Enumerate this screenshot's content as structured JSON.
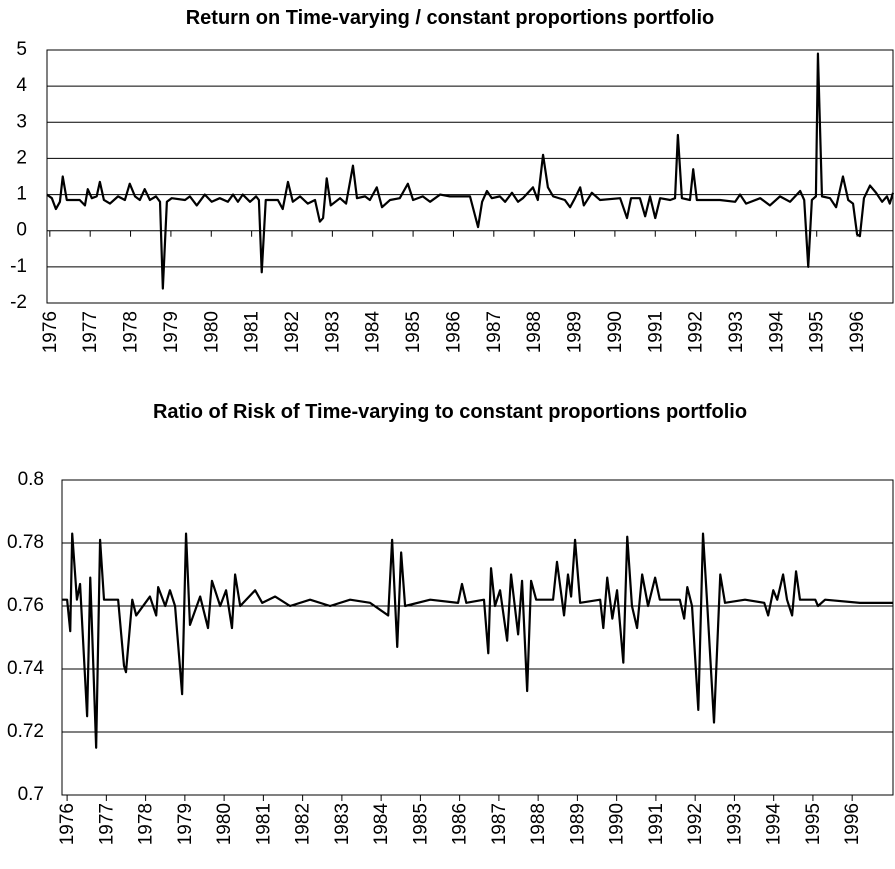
{
  "chart_data": [
    {
      "type": "line",
      "title": "Return on Time-varying / constant proportions portfolio",
      "x": [
        1975.93,
        1976.05,
        1976.15,
        1976.25,
        1976.32,
        1976.42,
        1976.74,
        1976.87,
        1976.94,
        1977.04,
        1977.16,
        1977.24,
        1977.34,
        1977.49,
        1977.69,
        1977.86,
        1977.98,
        1978.11,
        1978.23,
        1978.35,
        1978.48,
        1978.63,
        1978.73,
        1978.8,
        1978.9,
        1979.02,
        1979.35,
        1979.47,
        1979.64,
        1979.84,
        1980.01,
        1980.21,
        1980.41,
        1980.54,
        1980.66,
        1980.78,
        1980.96,
        1981.11,
        1981.18,
        1981.25,
        1981.35,
        1981.65,
        1981.77,
        1981.9,
        1982.02,
        1982.2,
        1982.39,
        1982.57,
        1982.69,
        1982.77,
        1982.86,
        1982.96,
        1983.19,
        1983.34,
        1983.51,
        1983.61,
        1983.81,
        1983.93,
        1984.1,
        1984.23,
        1984.43,
        1984.67,
        1984.87,
        1985.0,
        1985.24,
        1985.42,
        1985.67,
        1985.91,
        1986.41,
        1986.61,
        1986.71,
        1986.83,
        1986.95,
        1987.15,
        1987.28,
        1987.45,
        1987.6,
        1987.72,
        1987.97,
        1988.09,
        1988.22,
        1988.34,
        1988.47,
        1988.76,
        1988.89,
        1989.01,
        1989.14,
        1989.23,
        1989.43,
        1989.63,
        1990.13,
        1990.3,
        1990.4,
        1990.62,
        1990.75,
        1990.87,
        1991.0,
        1991.12,
        1991.37,
        1991.49,
        1991.56,
        1991.66,
        1991.86,
        1991.94,
        1992.03,
        1992.6,
        1992.98,
        1993.1,
        1993.25,
        1993.6,
        1993.84,
        1994.09,
        1994.34,
        1994.59,
        1994.69,
        1994.79,
        1994.88,
        1994.98,
        1995.03,
        1995.13,
        1995.33,
        1995.48,
        1995.65,
        1995.78,
        1995.9,
        1996.0,
        1996.07,
        1996.17,
        1996.32,
        1996.47,
        1996.62,
        1996.74,
        1996.81,
        1996.89
      ],
      "series": [
        {
          "color": "#000000",
          "values": [
            1.0,
            0.9,
            0.6,
            0.8,
            1.5,
            0.85,
            0.85,
            0.7,
            1.15,
            0.9,
            0.95,
            1.35,
            0.85,
            0.75,
            0.95,
            0.85,
            1.3,
            0.95,
            0.85,
            1.15,
            0.85,
            0.95,
            0.8,
            -1.6,
            0.8,
            0.9,
            0.85,
            0.95,
            0.7,
            1.0,
            0.8,
            0.9,
            0.8,
            1.0,
            0.8,
            1.0,
            0.8,
            0.95,
            0.85,
            -1.15,
            0.85,
            0.85,
            0.6,
            1.35,
            0.8,
            0.95,
            0.75,
            0.85,
            0.25,
            0.35,
            1.45,
            0.7,
            0.9,
            0.75,
            1.8,
            0.9,
            0.95,
            0.85,
            1.2,
            0.65,
            0.85,
            0.9,
            1.3,
            0.85,
            0.95,
            0.8,
            1.0,
            0.95,
            0.95,
            0.1,
            0.8,
            1.1,
            0.9,
            0.95,
            0.8,
            1.05,
            0.8,
            0.9,
            1.2,
            0.85,
            2.1,
            1.2,
            0.95,
            0.85,
            0.65,
            0.9,
            1.2,
            0.7,
            1.05,
            0.85,
            0.9,
            0.35,
            0.9,
            0.9,
            0.4,
            0.95,
            0.35,
            0.9,
            0.85,
            0.9,
            2.65,
            0.9,
            0.85,
            1.7,
            0.85,
            0.85,
            0.8,
            1.0,
            0.75,
            0.9,
            0.7,
            0.95,
            0.8,
            1.1,
            0.85,
            -1.0,
            0.85,
            0.95,
            4.9,
            0.95,
            0.9,
            0.65,
            1.5,
            0.85,
            0.75,
            -0.1,
            -0.15,
            0.9,
            1.25,
            1.05,
            0.8,
            0.95,
            0.75,
            1.05
          ]
        }
      ],
      "xlim": [
        1975.93,
        1996.89
      ],
      "xticks": [
        1976,
        1977,
        1978,
        1979,
        1980,
        1981,
        1982,
        1983,
        1984,
        1985,
        1986,
        1987,
        1988,
        1989,
        1990,
        1991,
        1992,
        1993,
        1994,
        1995,
        1996
      ],
      "ylim": [
        -2,
        5
      ],
      "yticks": [
        -2,
        -1,
        0,
        1,
        2,
        3,
        4,
        5
      ],
      "grid": true
    },
    {
      "type": "line",
      "title": "Ratio of Risk of Time-varying to constant proportions portfolio",
      "x": [
        1975.87,
        1976.0,
        1976.08,
        1976.13,
        1976.25,
        1976.33,
        1976.51,
        1976.59,
        1976.74,
        1976.84,
        1976.94,
        1977.3,
        1977.45,
        1977.5,
        1977.66,
        1977.76,
        1978.11,
        1978.27,
        1978.32,
        1978.5,
        1978.62,
        1978.75,
        1978.93,
        1979.03,
        1979.13,
        1979.39,
        1979.59,
        1979.69,
        1979.9,
        1980.05,
        1980.2,
        1980.28,
        1980.41,
        1980.79,
        1980.97,
        1981.3,
        1981.68,
        1982.19,
        1982.7,
        1983.21,
        1983.72,
        1984.18,
        1984.28,
        1984.41,
        1984.51,
        1984.61,
        1985.25,
        1985.96,
        1986.06,
        1986.17,
        1986.62,
        1986.73,
        1986.8,
        1986.9,
        1987.03,
        1987.21,
        1987.31,
        1987.49,
        1987.59,
        1987.72,
        1987.82,
        1987.95,
        1988.38,
        1988.48,
        1988.66,
        1988.76,
        1988.84,
        1988.94,
        1989.07,
        1989.58,
        1989.66,
        1989.76,
        1989.89,
        1990.01,
        1990.17,
        1990.27,
        1990.39,
        1990.52,
        1990.65,
        1990.8,
        1990.98,
        1991.1,
        1991.61,
        1991.72,
        1991.8,
        1991.92,
        1992.08,
        1992.2,
        1992.31,
        1992.48,
        1992.64,
        1992.76,
        1993.27,
        1993.76,
        1993.86,
        1993.99,
        1994.09,
        1994.24,
        1994.34,
        1994.47,
        1994.57,
        1994.67,
        1995.06,
        1995.13,
        1995.31,
        1996.2,
        1997.04
      ],
      "series": [
        {
          "color": "#000000",
          "values": [
            0.762,
            0.762,
            0.752,
            0.783,
            0.762,
            0.767,
            0.725,
            0.769,
            0.715,
            0.781,
            0.762,
            0.762,
            0.741,
            0.739,
            0.762,
            0.757,
            0.763,
            0.757,
            0.766,
            0.76,
            0.765,
            0.76,
            0.732,
            0.783,
            0.754,
            0.763,
            0.753,
            0.768,
            0.76,
            0.765,
            0.753,
            0.77,
            0.76,
            0.765,
            0.761,
            0.763,
            0.76,
            0.762,
            0.76,
            0.762,
            0.761,
            0.757,
            0.781,
            0.747,
            0.777,
            0.76,
            0.762,
            0.761,
            0.767,
            0.761,
            0.762,
            0.745,
            0.772,
            0.76,
            0.765,
            0.749,
            0.77,
            0.751,
            0.768,
            0.733,
            0.768,
            0.762,
            0.762,
            0.774,
            0.757,
            0.77,
            0.763,
            0.781,
            0.761,
            0.762,
            0.753,
            0.769,
            0.756,
            0.765,
            0.742,
            0.782,
            0.76,
            0.753,
            0.77,
            0.76,
            0.769,
            0.762,
            0.762,
            0.756,
            0.766,
            0.76,
            0.727,
            0.783,
            0.76,
            0.723,
            0.77,
            0.761,
            0.762,
            0.761,
            0.757,
            0.765,
            0.762,
            0.77,
            0.762,
            0.757,
            0.771,
            0.762,
            0.762,
            0.76,
            0.762,
            0.761,
            0.761
          ]
        }
      ],
      "xlim": [
        1975.87,
        1997.04
      ],
      "xticks": [
        1976,
        1977,
        1978,
        1979,
        1980,
        1981,
        1982,
        1983,
        1984,
        1985,
        1986,
        1987,
        1988,
        1989,
        1990,
        1991,
        1992,
        1993,
        1994,
        1995,
        1996
      ],
      "ylim": [
        0.7,
        0.8
      ],
      "yticks": [
        0.7,
        0.72,
        0.74,
        0.76,
        0.78,
        0.8
      ],
      "grid": true
    }
  ]
}
